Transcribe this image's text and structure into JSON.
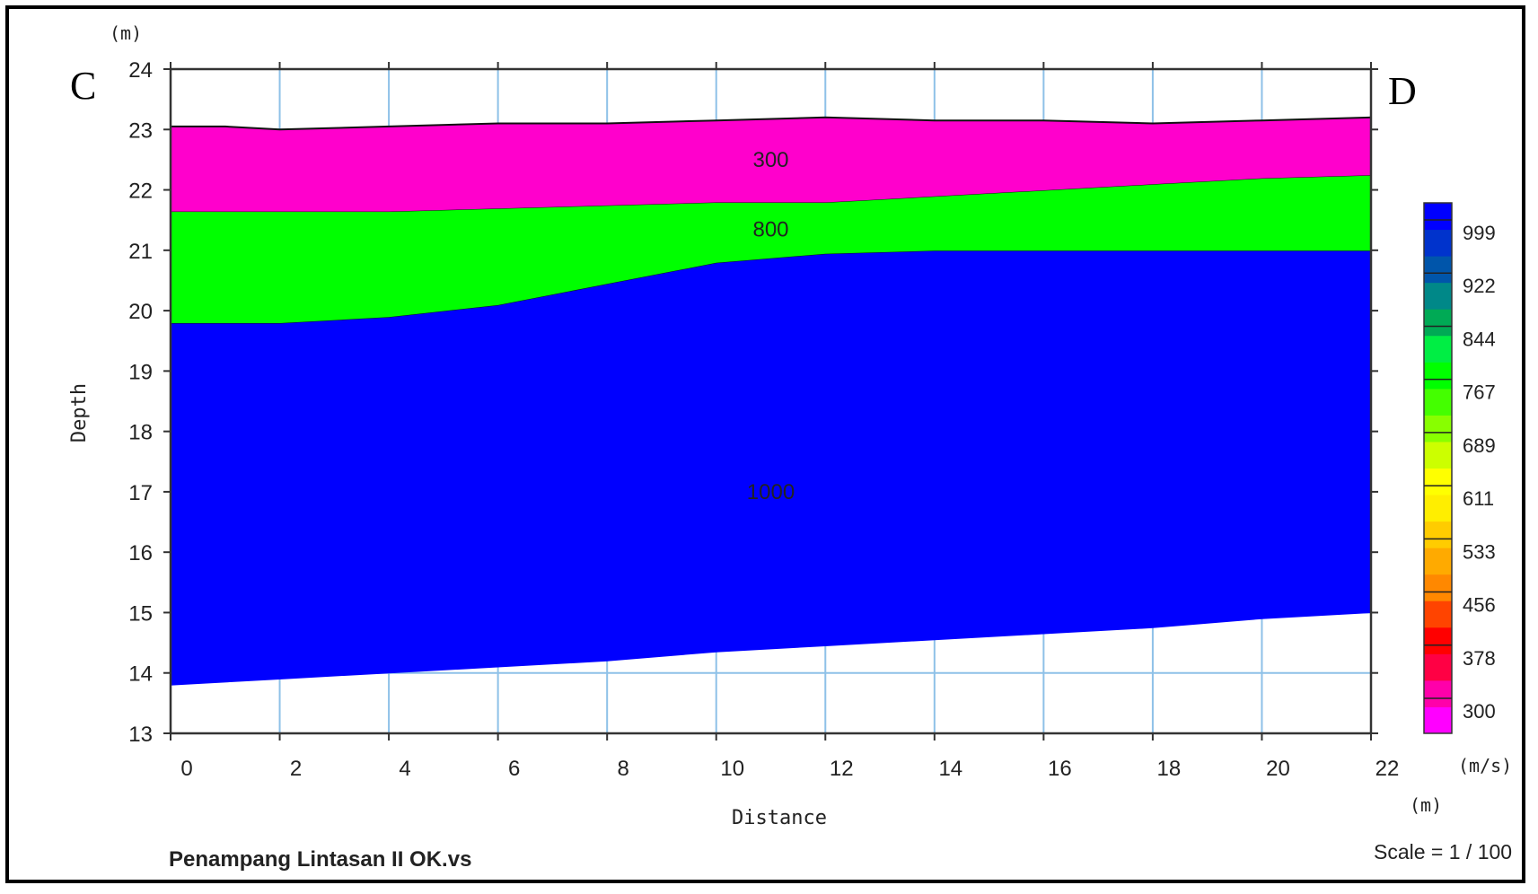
{
  "chart_data": {
    "type": "area",
    "xlabel": "Distance",
    "ylabel": "Depth",
    "x_unit": "(m)",
    "y_unit": "(m)",
    "xlim": [
      0,
      22
    ],
    "ylim": [
      13,
      24
    ],
    "xticks": [
      0,
      2,
      4,
      6,
      8,
      10,
      12,
      14,
      16,
      18,
      20,
      22
    ],
    "yticks": [
      13,
      14,
      15,
      16,
      17,
      18,
      19,
      20,
      21,
      22,
      23,
      24
    ],
    "grid": true,
    "start_label": "C",
    "end_label": "D",
    "layers": [
      {
        "label": "1000",
        "color": "#0000ff",
        "label_pos": [
          11,
          17
        ],
        "top": [
          [
            0,
            19.8
          ],
          [
            2,
            19.8
          ],
          [
            4,
            19.9
          ],
          [
            6,
            20.1
          ],
          [
            8,
            20.45
          ],
          [
            10,
            20.8
          ],
          [
            12,
            20.95
          ],
          [
            14,
            21.0
          ],
          [
            16,
            21.0
          ],
          [
            18,
            21.0
          ],
          [
            20,
            21.0
          ],
          [
            22,
            21.0
          ]
        ],
        "bottom": [
          [
            0,
            13.8
          ],
          [
            2,
            13.9
          ],
          [
            4,
            14.0
          ],
          [
            6,
            14.1
          ],
          [
            8,
            14.2
          ],
          [
            10,
            14.35
          ],
          [
            12,
            14.45
          ],
          [
            14,
            14.55
          ],
          [
            16,
            14.65
          ],
          [
            18,
            14.75
          ],
          [
            20,
            14.9
          ],
          [
            22,
            15.0
          ]
        ]
      },
      {
        "label": "800",
        "color": "#00ff00",
        "label_pos": [
          11,
          21.35
        ],
        "top": [
          [
            0,
            21.65
          ],
          [
            2,
            21.65
          ],
          [
            4,
            21.65
          ],
          [
            6,
            21.7
          ],
          [
            8,
            21.75
          ],
          [
            10,
            21.8
          ],
          [
            12,
            21.8
          ],
          [
            14,
            21.9
          ],
          [
            16,
            22.0
          ],
          [
            18,
            22.1
          ],
          [
            20,
            22.2
          ],
          [
            22,
            22.25
          ]
        ],
        "bottom": [
          [
            0,
            19.8
          ],
          [
            2,
            19.8
          ],
          [
            4,
            19.9
          ],
          [
            6,
            20.1
          ],
          [
            8,
            20.45
          ],
          [
            10,
            20.8
          ],
          [
            12,
            20.95
          ],
          [
            14,
            21.0
          ],
          [
            16,
            21.0
          ],
          [
            18,
            21.0
          ],
          [
            20,
            21.0
          ],
          [
            22,
            21.0
          ]
        ]
      },
      {
        "label": "300",
        "color": "#ff00cc",
        "label_pos": [
          11,
          22.5
        ],
        "top": [
          [
            0,
            23.05
          ],
          [
            1,
            23.05
          ],
          [
            2,
            23.0
          ],
          [
            4,
            23.05
          ],
          [
            6,
            23.1
          ],
          [
            8,
            23.1
          ],
          [
            10,
            23.15
          ],
          [
            12,
            23.2
          ],
          [
            14,
            23.15
          ],
          [
            16,
            23.15
          ],
          [
            18,
            23.1
          ],
          [
            20,
            23.15
          ],
          [
            22,
            23.2
          ]
        ],
        "bottom": [
          [
            0,
            21.65
          ],
          [
            2,
            21.65
          ],
          [
            4,
            21.65
          ],
          [
            6,
            21.7
          ],
          [
            8,
            21.75
          ],
          [
            10,
            21.8
          ],
          [
            12,
            21.8
          ],
          [
            14,
            21.9
          ],
          [
            16,
            22.0
          ],
          [
            18,
            22.1
          ],
          [
            20,
            22.2
          ],
          [
            22,
            22.25
          ]
        ]
      }
    ],
    "colorbar": {
      "unit": "(m/s)",
      "ticks": [
        "999",
        "922",
        "844",
        "767",
        "689",
        "611",
        "533",
        "456",
        "378",
        "300"
      ],
      "colors": [
        "#ff00ff",
        "#ff00aa",
        "#ff0044",
        "#ff0000",
        "#ff4400",
        "#ff8800",
        "#ffaa00",
        "#ffcc00",
        "#ffee00",
        "#ffff00",
        "#ccff00",
        "#88ff00",
        "#44ff00",
        "#00ff00",
        "#00ee44",
        "#00aa55",
        "#008888",
        "#0055aa",
        "#0033cc",
        "#0000ff"
      ]
    },
    "file_label": "Penampang Lintasan II OK.vs",
    "scale_label": "Scale = 1 / 100"
  }
}
